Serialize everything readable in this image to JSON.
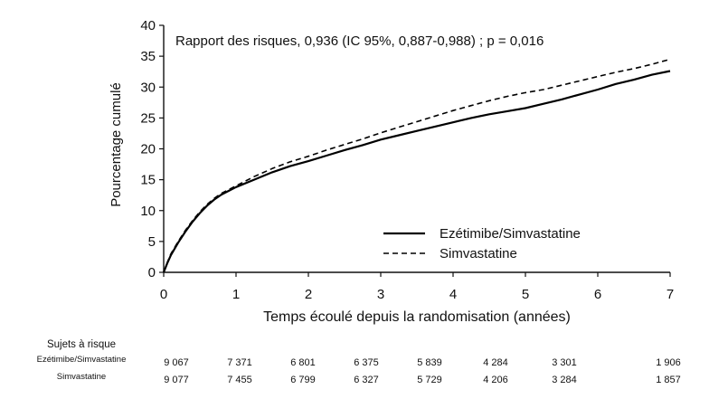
{
  "chart_data": {
    "type": "line",
    "title": "",
    "annotation": "Rapport des risques, 0,936 (IC 95%, 0,887-0,988) ; p = 0,016",
    "xlabel": "Temps écoulé depuis la randomisation (années)",
    "ylabel": "Pourcentage cumulé",
    "xlim": [
      0,
      7
    ],
    "ylim": [
      0,
      40
    ],
    "xticks": [
      "0",
      "1",
      "2",
      "3",
      "4",
      "5",
      "6",
      "7"
    ],
    "yticks": [
      "0",
      "5",
      "10",
      "15",
      "20",
      "25",
      "30",
      "35",
      "40"
    ],
    "grid": false,
    "legend_position": "lower-right",
    "series": [
      {
        "name": "Ezétimibe/Simvastatine",
        "style": "solid",
        "color": "#000000",
        "x": [
          0,
          0.05,
          0.1,
          0.2,
          0.3,
          0.4,
          0.5,
          0.6,
          0.7,
          0.8,
          0.9,
          1.0,
          1.25,
          1.5,
          1.75,
          2.0,
          2.25,
          2.5,
          2.75,
          3.0,
          3.25,
          3.5,
          3.75,
          4.0,
          4.25,
          4.5,
          4.75,
          5.0,
          5.25,
          5.5,
          5.75,
          6.0,
          6.25,
          6.5,
          6.75,
          7.0
        ],
        "y": [
          0,
          1.5,
          2.8,
          4.8,
          6.6,
          8.2,
          9.6,
          10.8,
          11.8,
          12.6,
          13.2,
          13.8,
          15.0,
          16.2,
          17.2,
          18.0,
          18.9,
          19.8,
          20.6,
          21.5,
          22.2,
          22.9,
          23.6,
          24.3,
          25.0,
          25.6,
          26.1,
          26.6,
          27.3,
          28.0,
          28.8,
          29.6,
          30.5,
          31.2,
          32.0,
          32.6
        ]
      },
      {
        "name": "Simvastatine",
        "style": "dashed",
        "color": "#000000",
        "x": [
          0,
          0.05,
          0.1,
          0.2,
          0.3,
          0.4,
          0.5,
          0.6,
          0.7,
          0.8,
          0.9,
          1.0,
          1.25,
          1.5,
          1.75,
          2.0,
          2.25,
          2.5,
          2.75,
          3.0,
          3.25,
          3.5,
          3.75,
          4.0,
          4.25,
          4.5,
          4.75,
          5.0,
          5.25,
          5.5,
          5.75,
          6.0,
          6.25,
          6.5,
          6.75,
          7.0
        ],
        "y": [
          0,
          1.6,
          3.0,
          5.0,
          6.8,
          8.4,
          9.8,
          11.0,
          12.0,
          12.8,
          13.4,
          14.0,
          15.5,
          16.8,
          17.9,
          18.8,
          19.8,
          20.7,
          21.6,
          22.6,
          23.5,
          24.4,
          25.3,
          26.2,
          27.0,
          27.8,
          28.5,
          29.1,
          29.6,
          30.3,
          31.0,
          31.7,
          32.4,
          33.0,
          33.7,
          34.5
        ]
      }
    ]
  },
  "risk_table": {
    "title": "Sujets à risque",
    "rows": [
      {
        "name": "Ezétimibe/Simvastatine",
        "values": [
          "9 067",
          "7 371",
          "6 801",
          "6 375",
          "5 839",
          "4 284",
          "3 301",
          "1 906"
        ]
      },
      {
        "name": "Simvastatine",
        "values": [
          "9 077",
          "7 455",
          "6 799",
          "6 327",
          "5 729",
          "4 206",
          "3 284",
          "1 857"
        ]
      }
    ]
  }
}
